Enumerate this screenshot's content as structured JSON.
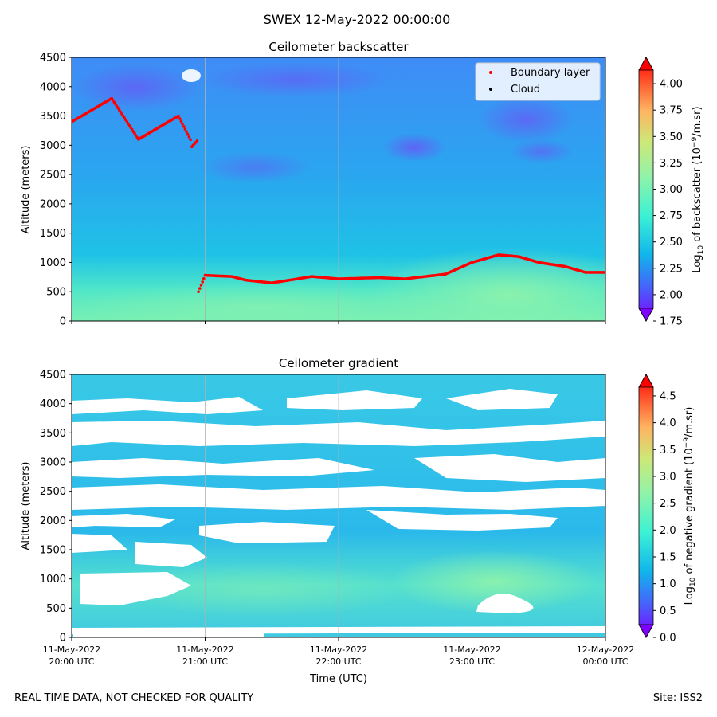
{
  "suptitle": "SWEX 12-May-2022 00:00:00",
  "footer": {
    "left": "REAL TIME DATA, NOT CHECKED FOR QUALITY",
    "right": "Site: ISS2"
  },
  "colors": {
    "colormap": [
      "#7f00ff",
      "#4a5dfc",
      "#11b4ec",
      "#3cf2d4",
      "#92f3a9",
      "#cde878",
      "#ffb360",
      "#ff5c30",
      "#ff0000"
    ],
    "boundary_layer": "#ff0000",
    "cloud": "#000000",
    "grid": "#b0b0b0"
  },
  "chart_data": [
    {
      "type": "heatmap",
      "title": "Ceilometer backscatter",
      "ylabel": "Altitude (meters)",
      "xlabel": "",
      "ylim": [
        0,
        4500
      ],
      "yticks": [
        "0",
        "500",
        "1000",
        "1500",
        "2000",
        "2500",
        "3000",
        "3500",
        "4000",
        "4500"
      ],
      "xticks_count": 5,
      "colorbar": {
        "label": "Log10 of backscatter (10^-9/m.sr)",
        "range": [
          1.75,
          4.25
        ],
        "ticks": [
          "1.75",
          "2.00",
          "2.25",
          "2.50",
          "2.75",
          "3.00",
          "3.25",
          "3.50",
          "3.75",
          "4.00"
        ]
      },
      "legend": {
        "position": "top-right",
        "entries": [
          {
            "label": "Boundary layer",
            "color": "#ff0000"
          },
          {
            "label": "Cloud",
            "color": "#000000"
          }
        ]
      },
      "boundary_layer": {
        "time_hours": [
          0.0,
          0.3,
          0.5,
          0.8,
          0.9,
          0.95,
          1.0,
          1.2,
          1.3,
          1.5,
          1.8,
          2.0,
          2.3,
          2.5,
          2.8,
          3.0,
          3.2,
          3.35,
          3.5,
          3.7,
          3.85,
          4.0
        ],
        "altitude_m": [
          3400,
          3800,
          3100,
          3500,
          3050,
          500,
          780,
          760,
          700,
          650,
          760,
          720,
          740,
          720,
          800,
          1000,
          1130,
          1100,
          1000,
          930,
          830,
          830
        ]
      },
      "field_note": "backscatter ~2.0-2.5 aloft, ~2.8-3.0 below 1000 m"
    },
    {
      "type": "heatmap",
      "title": "Ceilometer gradient",
      "ylabel": "Altitude (meters)",
      "xlabel": "Time (UTC)",
      "ylim": [
        0,
        4500
      ],
      "yticks": [
        "0",
        "500",
        "1000",
        "1500",
        "2000",
        "2500",
        "3000",
        "3500",
        "4000",
        "4500"
      ],
      "xticks": [
        {
          "date": "11-May-2022",
          "time": "20:00 UTC"
        },
        {
          "date": "11-May-2022",
          "time": "21:00 UTC"
        },
        {
          "date": "11-May-2022",
          "time": "22:00 UTC"
        },
        {
          "date": "11-May-2022",
          "time": "23:00 UTC"
        },
        {
          "date": "12-May-2022",
          "time": "00:00 UTC"
        }
      ],
      "colorbar": {
        "label": "Log10 of negative gradient (10^-9/m.sr)",
        "range": [
          0.0,
          4.9
        ],
        "ticks": [
          "0.0",
          "0.5",
          "1.0",
          "1.5",
          "2.0",
          "2.5",
          "3.0",
          "3.5",
          "4.0",
          "4.5"
        ]
      },
      "field_note": "gradient ~1.0-2.0 where present, white gaps where gradient non-negative"
    }
  ]
}
